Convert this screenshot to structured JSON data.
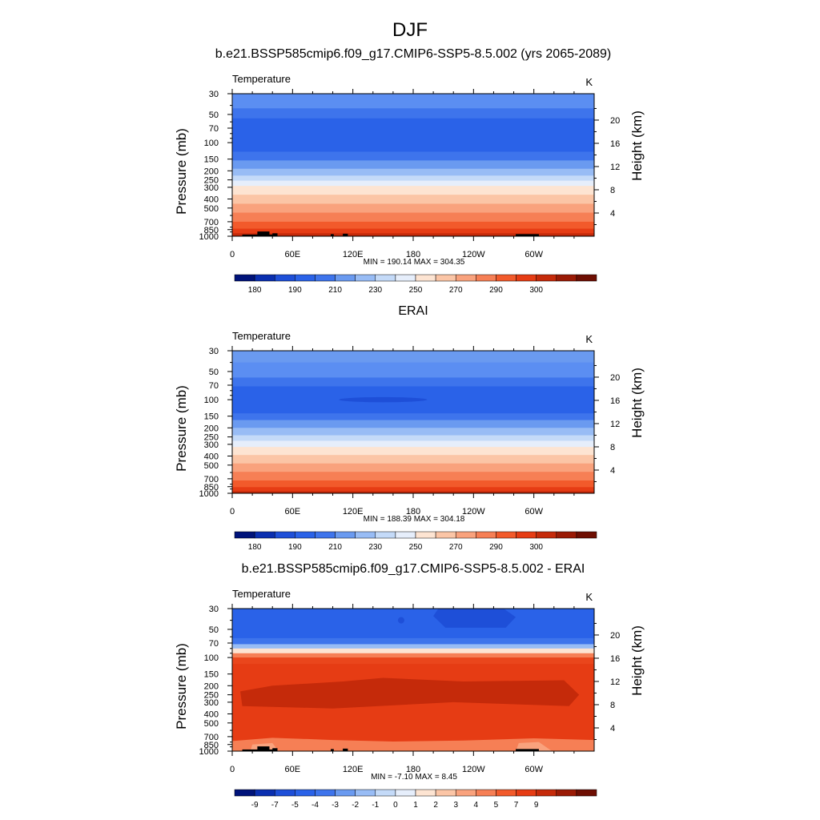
{
  "page_title": "DJF",
  "chart_data": [
    {
      "type": "heatmap",
      "title": "b.e21.BSSP585cmip6.f09_g17.CMIP6-SSP5-8.5.002 (yrs 2065-2089)",
      "variable": "Temperature",
      "units": "K",
      "ylabel_left": "Pressure (mb)",
      "ylabel_right": "Height (km)",
      "x_ticks": [
        "0",
        "60E",
        "120E",
        "180",
        "120W",
        "60W"
      ],
      "y_ticks": [
        "30",
        "50",
        "70",
        "100",
        "150",
        "200",
        "250",
        "300",
        "400",
        "500",
        "700",
        "850",
        "1000"
      ],
      "height_ticks": [
        "20",
        "16",
        "12",
        "8",
        "4"
      ],
      "stats": "MIN = 190.14  MAX = 304.35",
      "colorbar_labels": [
        "180",
        "190",
        "210",
        "230",
        "250",
        "270",
        "290",
        "300"
      ],
      "bands": [
        {
          "p": 30,
          "c": "#5b8ef2"
        },
        {
          "p": 43,
          "c": "#3e74ec"
        },
        {
          "p": 55,
          "c": "#2a62e8"
        },
        {
          "p": 105,
          "c": "#2a62e8"
        },
        {
          "p": 125,
          "c": "#3e74ec"
        },
        {
          "p": 155,
          "c": "#6a9af0"
        },
        {
          "p": 190,
          "c": "#98bcf5"
        },
        {
          "p": 225,
          "c": "#c4daf8"
        },
        {
          "p": 255,
          "c": "#e6eefb"
        },
        {
          "p": 290,
          "c": "#fde4d2"
        },
        {
          "p": 360,
          "c": "#fbc5a6"
        },
        {
          "p": 450,
          "c": "#f9a27d"
        },
        {
          "p": 560,
          "c": "#f67f55"
        },
        {
          "p": 700,
          "c": "#f25a2b"
        },
        {
          "p": 830,
          "c": "#e63c14"
        },
        {
          "p": 930,
          "c": "#c52a0a"
        },
        {
          "p": 1000,
          "c": "#9a1a05"
        }
      ]
    },
    {
      "type": "heatmap",
      "title": "ERAI",
      "variable": "Temperature",
      "units": "K",
      "ylabel_left": "Pressure (mb)",
      "ylabel_right": "Height (km)",
      "x_ticks": [
        "0",
        "60E",
        "120E",
        "180",
        "120W",
        "60W"
      ],
      "y_ticks": [
        "30",
        "50",
        "70",
        "100",
        "150",
        "200",
        "250",
        "300",
        "400",
        "500",
        "700",
        "850",
        "1000"
      ],
      "height_ticks": [
        "20",
        "16",
        "12",
        "8",
        "4"
      ],
      "stats": "MIN = 188.39  MAX = 304.18",
      "colorbar_labels": [
        "180",
        "190",
        "210",
        "230",
        "250",
        "270",
        "290",
        "300"
      ],
      "bands": [
        {
          "p": 30,
          "c": "#6a9af0"
        },
        {
          "p": 40,
          "c": "#5b8ef2"
        },
        {
          "p": 58,
          "c": "#3e74ec"
        },
        {
          "p": 72,
          "c": "#2a62e8"
        },
        {
          "p": 118,
          "c": "#2a62e8"
        },
        {
          "p": 140,
          "c": "#3e74ec"
        },
        {
          "p": 165,
          "c": "#6a9af0"
        },
        {
          "p": 200,
          "c": "#98bcf5"
        },
        {
          "p": 240,
          "c": "#c4daf8"
        },
        {
          "p": 275,
          "c": "#e6eefb"
        },
        {
          "p": 320,
          "c": "#fde4d2"
        },
        {
          "p": 390,
          "c": "#fbc5a6"
        },
        {
          "p": 480,
          "c": "#f9a27d"
        },
        {
          "p": 590,
          "c": "#f67f55"
        },
        {
          "p": 730,
          "c": "#f25a2b"
        },
        {
          "p": 860,
          "c": "#e63c14"
        },
        {
          "p": 950,
          "c": "#c52a0a"
        },
        {
          "p": 1000,
          "c": "#9a1a05"
        }
      ]
    },
    {
      "type": "heatmap",
      "title": "b.e21.BSSP585cmip6.f09_g17.CMIP6-SSP5-8.5.002 - ERAI",
      "variable": "Temperature",
      "units": "K",
      "ylabel_left": "Pressure (mb)",
      "ylabel_right": "Height (km)",
      "x_ticks": [
        "0",
        "60E",
        "120E",
        "180",
        "120W",
        "60W"
      ],
      "y_ticks": [
        "30",
        "50",
        "70",
        "100",
        "150",
        "200",
        "250",
        "300",
        "400",
        "500",
        "700",
        "850",
        "1000"
      ],
      "height_ticks": [
        "20",
        "16",
        "12",
        "8",
        "4"
      ],
      "stats": "MIN =  -7.10  MAX =   8.45",
      "colorbar_labels": [
        "-9",
        "-7",
        "-5",
        "-4",
        "-3",
        "-2",
        "-1",
        "0",
        "1",
        "2",
        "3",
        "4",
        "5",
        "7",
        "9"
      ],
      "bands": [
        {
          "p": 30,
          "c": "#2a62e8"
        },
        {
          "p": 62,
          "c": "#3e74ec"
        },
        {
          "p": 72,
          "c": "#98bcf5"
        },
        {
          "p": 80,
          "c": "#fde4d2"
        },
        {
          "p": 90,
          "c": "#f67f55"
        },
        {
          "p": 100,
          "c": "#e63c14"
        },
        {
          "p": 1000,
          "c": "#e63c14"
        }
      ]
    }
  ],
  "colorbar_colors": [
    "#00137a",
    "#0a2fb0",
    "#1e4fd8",
    "#2a62e8",
    "#3e74ec",
    "#6a9af0",
    "#98bcf5",
    "#c4daf8",
    "#e6eefb",
    "#fde4d2",
    "#fbc5a6",
    "#f9a27d",
    "#f67f55",
    "#f25a2b",
    "#e63c14",
    "#c52a0a",
    "#9a1a05",
    "#6e0e02"
  ]
}
